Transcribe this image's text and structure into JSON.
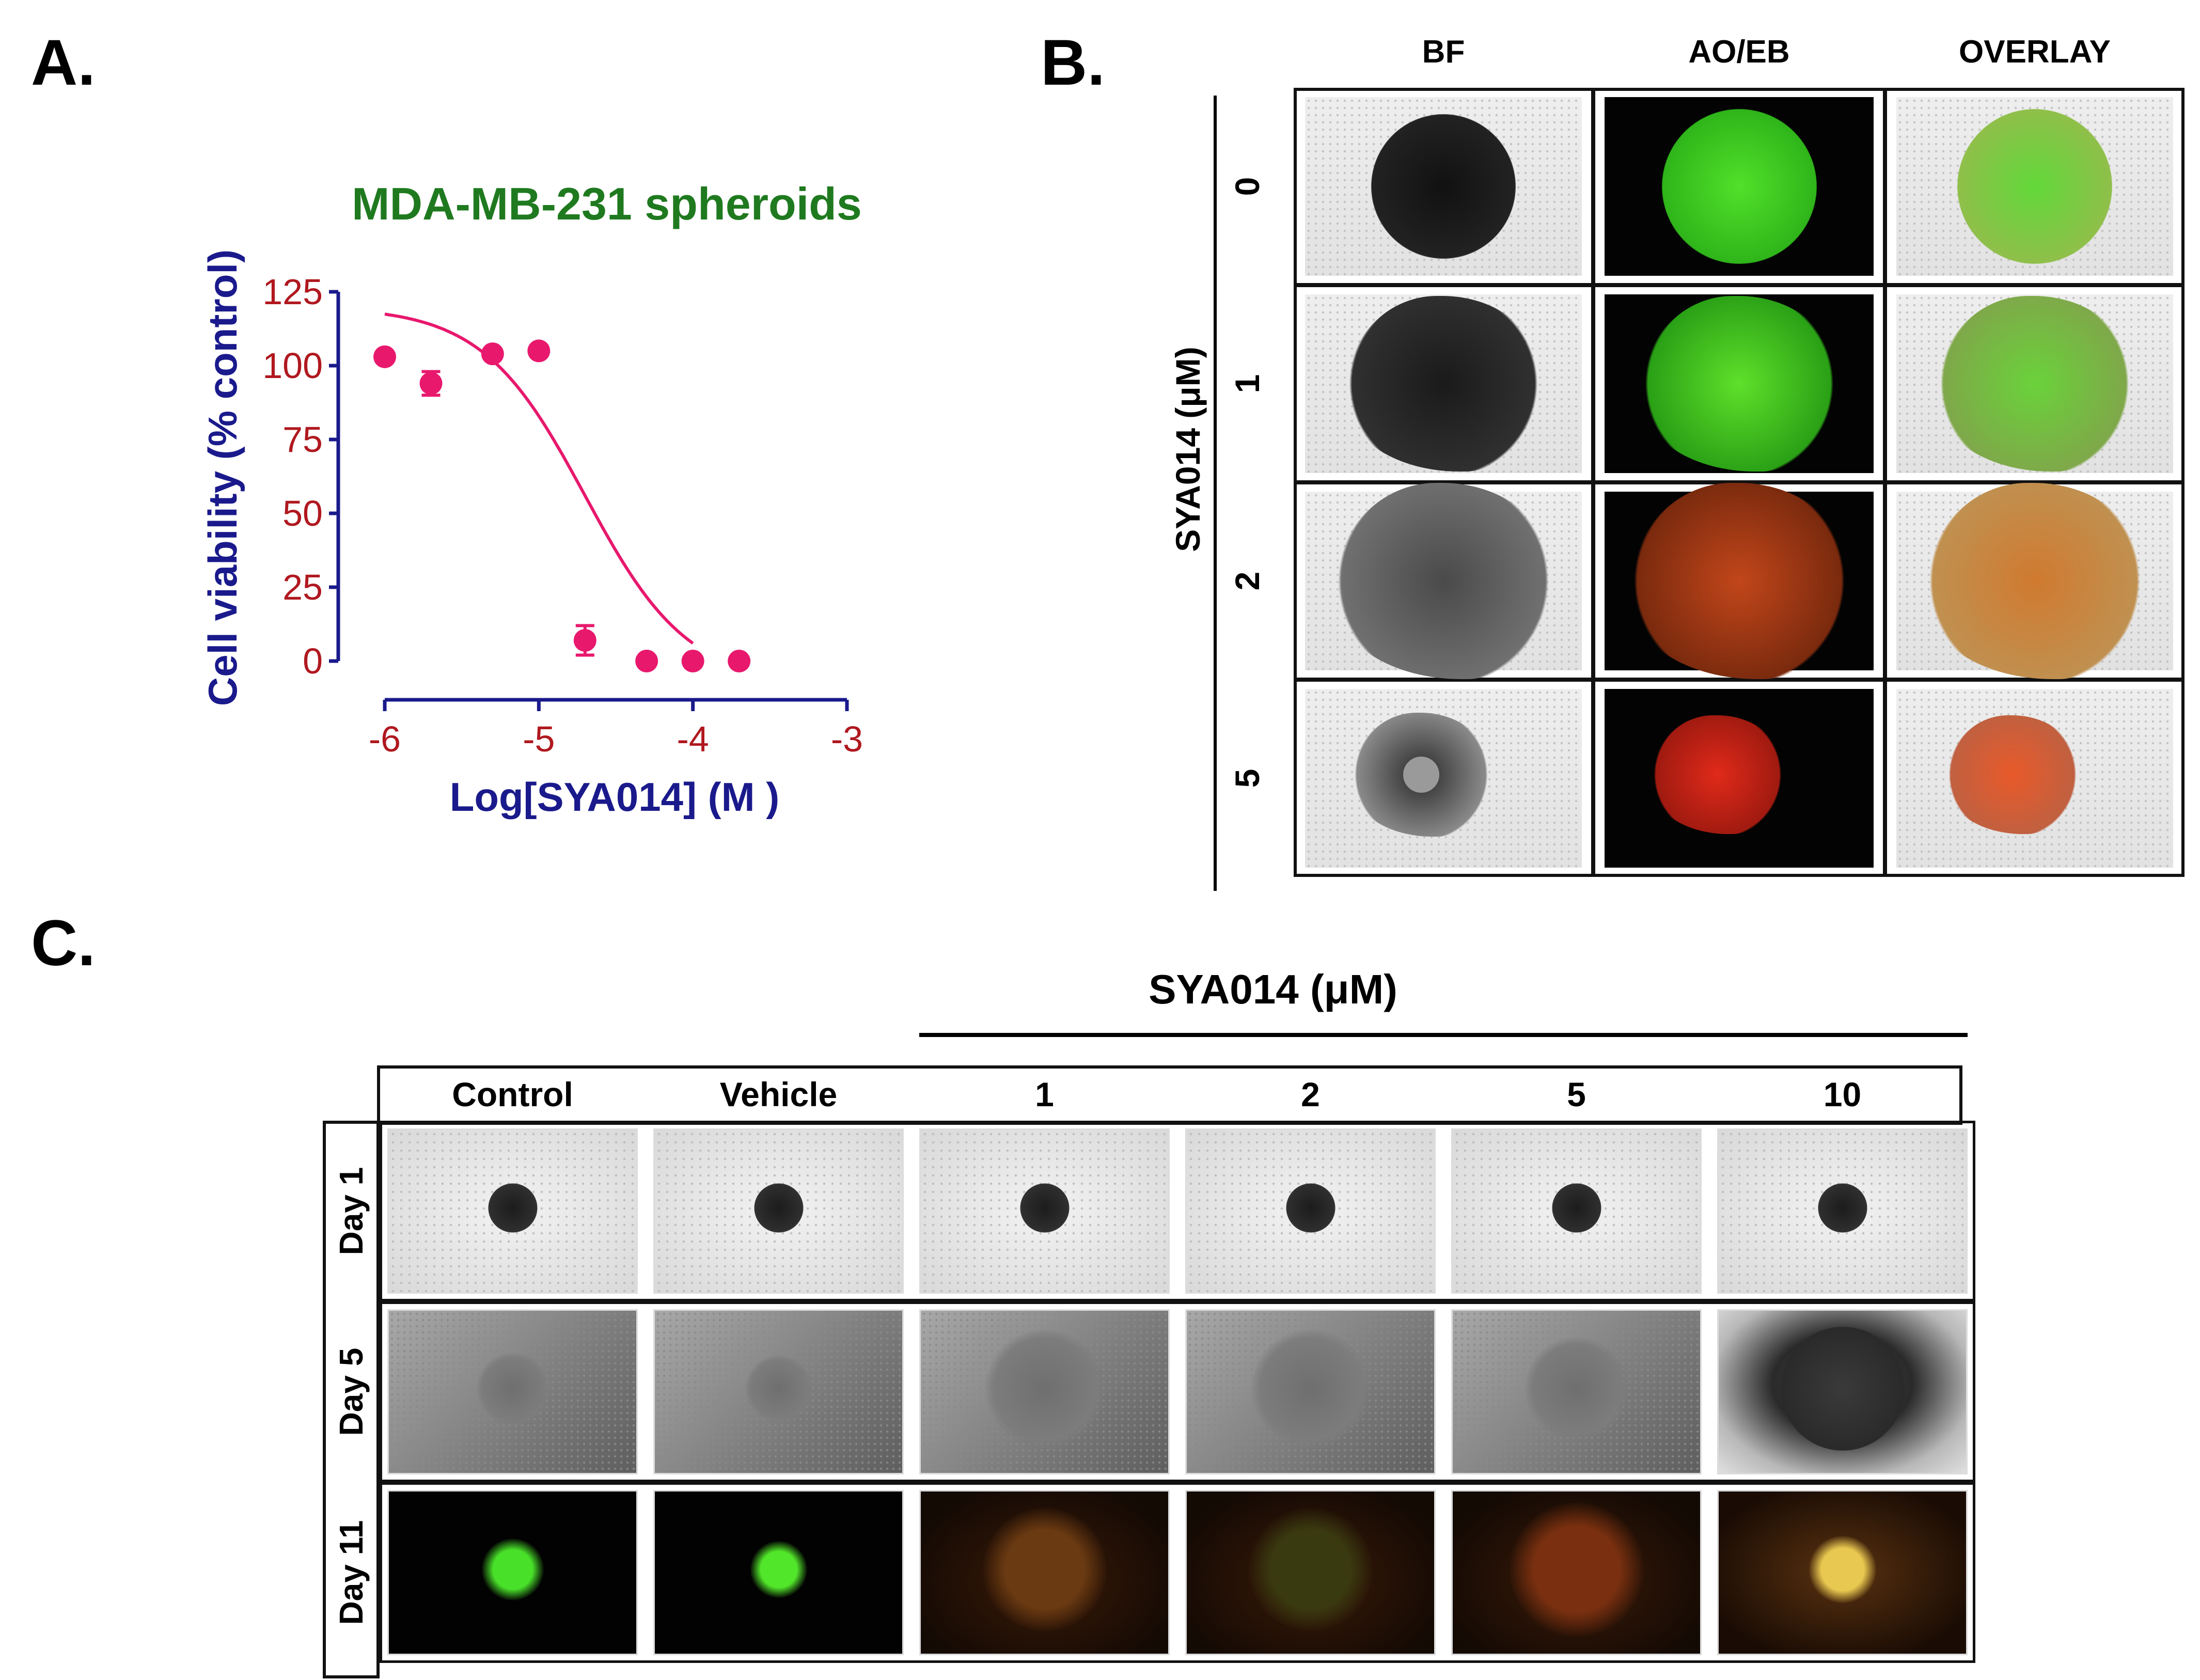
{
  "panels": {
    "a": "A.",
    "b": "B.",
    "c": "C."
  },
  "chart_data": {
    "type": "scatter",
    "title": "MDA-MB-231 spheroids",
    "xlabel": "Log[SYA014] (M )",
    "ylabel": "Cell viability (% control)",
    "xlim": [
      -6,
      -3
    ],
    "ylim": [
      0,
      125
    ],
    "x_ticks": [
      "-6",
      "-5",
      "-4",
      "-3"
    ],
    "y_ticks": [
      "0",
      "25",
      "50",
      "75",
      "100",
      "125"
    ],
    "points": [
      {
        "x": -6.0,
        "y": 103
      },
      {
        "x": -5.7,
        "y": 94,
        "err": 4
      },
      {
        "x": -5.3,
        "y": 104
      },
      {
        "x": -5.0,
        "y": 105
      },
      {
        "x": -4.7,
        "y": 7,
        "err": 5
      },
      {
        "x": -4.3,
        "y": 0
      },
      {
        "x": -4.0,
        "y": 0
      },
      {
        "x": -3.7,
        "y": 0
      }
    ],
    "fit": {
      "top": 120,
      "bottom": -8,
      "log_ic50": -4.7,
      "hill": -1.3
    },
    "colors": {
      "points": "#e8186d",
      "axes": "#1a1a8c",
      "ticks": "#b0181f",
      "title": "#1f7a1f"
    }
  },
  "panel_b": {
    "columns": [
      "BF",
      "AO/EB",
      "OVERLAY"
    ],
    "row_axis_label": "SYA014 (μM)",
    "rows": [
      "0",
      "1",
      "2",
      "5"
    ]
  },
  "panel_c": {
    "treatment_label": "SYA014 (μM)",
    "columns": [
      "Control",
      "Vehicle",
      "1",
      "2",
      "5",
      "10"
    ],
    "rows": [
      "Day 1",
      "Day 5",
      "Day 11"
    ]
  }
}
